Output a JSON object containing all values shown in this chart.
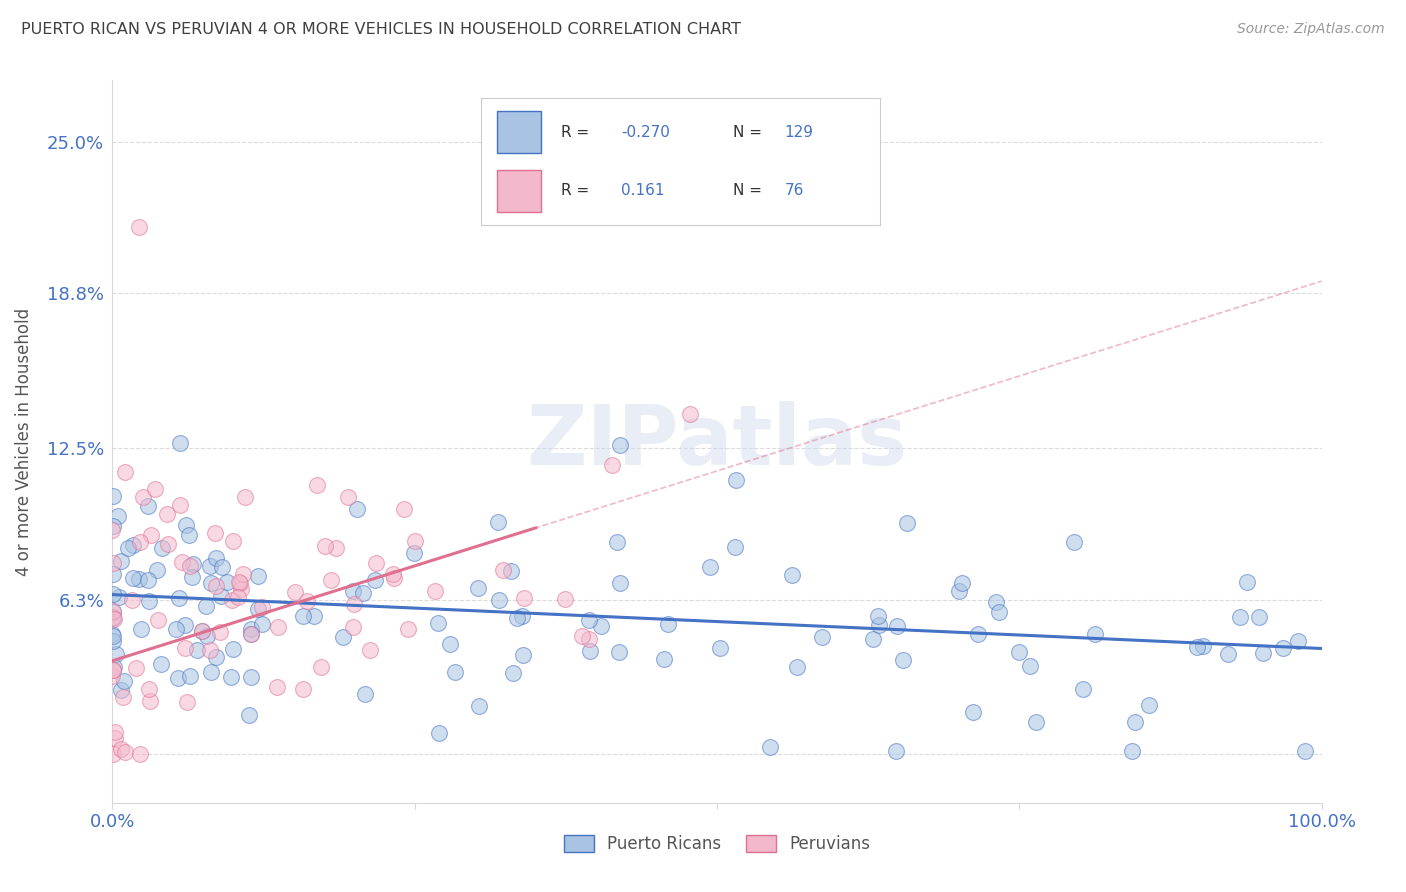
{
  "title": "PUERTO RICAN VS PERUVIAN 4 OR MORE VEHICLES IN HOUSEHOLD CORRELATION CHART",
  "source": "Source: ZipAtlas.com",
  "ylabel": "4 or more Vehicles in Household",
  "ytick_values": [
    0.0,
    0.063,
    0.125,
    0.188,
    0.25
  ],
  "ytick_labels": [
    "",
    "6.3%",
    "12.5%",
    "18.8%",
    "25.0%"
  ],
  "xlim": [
    0.0,
    1.0
  ],
  "ylim": [
    -0.02,
    0.275
  ],
  "watermark": "ZIPatlas",
  "pr_R": -0.27,
  "pr_N": 129,
  "pe_R": 0.161,
  "pe_N": 76,
  "pr_scatter_color": "#a8c4e2",
  "pe_scatter_color": "#f4b8cc",
  "pr_line_color": "#4472c4",
  "pe_line_color": "#e07090",
  "background_color": "#ffffff",
  "grid_color": "#d8d8d8",
  "title_color": "#404040",
  "axis_label_color": "#4472c4",
  "pr_line_intercept": 0.065,
  "pr_line_slope": -0.022,
  "pe_line_intercept": 0.038,
  "pe_line_slope": 0.155,
  "pe_line_xmax": 0.35
}
